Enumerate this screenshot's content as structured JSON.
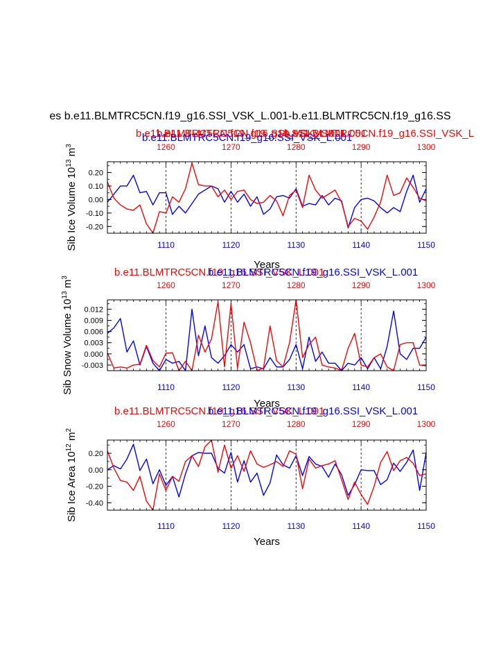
{
  "page": {
    "main_title": "es b.e11.BLMTRC5CN.f19_g16.SSI_VSK_L.001-b.e11.BLMTRC5CN.f19_g16.SS"
  },
  "colors": {
    "blue": "#0000ff",
    "red": "#ff0000",
    "black": "#000000"
  },
  "chart_data": [
    {
      "type": "line",
      "top_titles": [
        {
          "text": "b.e11.BLMTRC5CN.f19_g16.SSI_VSK_L.001",
          "color": "red"
        },
        {
          "text": "b.e11.BLMTRC5CN.f19_g16.SSI_VSK_L.001",
          "color": "red"
        },
        {
          "text": "b.e11.BLMTRC5CN.f19_g16.SSI_VSK_L.001",
          "color": "blue"
        },
        {
          "text": "b.e11.BLMTRC5CN.f19_g16.SSI_VSK_L",
          "color": "red"
        }
      ],
      "ylabel": "Sib Ice Volume 10",
      "ylabel_exp": "13",
      "ylabel_unit": " m",
      "ylabel_unit_exp": "3",
      "xlabel": "Years",
      "xlim": [
        1101,
        1150
      ],
      "ylim": [
        -0.25,
        0.28
      ],
      "yticks": [
        -0.2,
        -0.1,
        0.0,
        0.1,
        0.2
      ],
      "ytick_labels": [
        "-0.20",
        "-0.10",
        "0.00",
        "0.10",
        "0.20"
      ],
      "bottom_ticks": [
        1110,
        1120,
        1130,
        1140,
        1150
      ],
      "top_ticks": [
        1260,
        1270,
        1280,
        1290,
        1300
      ],
      "dashed_verticals": [
        1110,
        1120,
        1130,
        1140
      ],
      "series": [
        {
          "color": "blue",
          "values": [
            -0.02,
            0.04,
            0.1,
            0.1,
            0.18,
            0.05,
            0.06,
            -0.04,
            0.05,
            0.05,
            -0.11,
            -0.05,
            -0.1,
            -0.03,
            0.04,
            0.07,
            0.1,
            0.08,
            -0.02,
            0.06,
            -0.02,
            0.04,
            -0.05,
            0.02,
            -0.11,
            -0.07,
            0.02,
            0.03,
            0.01,
            0.08,
            -0.05,
            -0.03,
            -0.04,
            0.03,
            -0.04,
            0.01,
            -0.01,
            -0.21,
            -0.06,
            0.0,
            0.01,
            -0.01,
            -0.06,
            -0.1,
            -0.06,
            -0.09,
            0.06,
            0.18,
            -0.02,
            0.08
          ]
        },
        {
          "color": "red",
          "values": [
            0.13,
            0.01,
            -0.04,
            -0.07,
            -0.08,
            -0.04,
            -0.18,
            -0.25,
            -0.09,
            -0.1,
            0.02,
            -0.02,
            0.08,
            0.27,
            0.11,
            0.1,
            0.1,
            0.02,
            0.07,
            0.0,
            0.06,
            0.07,
            0.0,
            -0.03,
            -0.02,
            0.03,
            -0.01,
            -0.12,
            0.03,
            0.07,
            -0.06,
            0.18,
            0.07,
            0.01,
            0.04,
            0.07,
            -0.02,
            -0.2,
            -0.14,
            -0.16,
            -0.22,
            -0.13,
            -0.02,
            0.18,
            0.03,
            0.05,
            0.16,
            0.09,
            0.01,
            -0.01
          ]
        }
      ]
    },
    {
      "type": "line",
      "top_titles": [
        {
          "text": "b.e11.BLMTRC5CN.f19_g16.SSI_VSK_L.001",
          "color": "red"
        },
        {
          "text": "b.e11.BLMTRC5CN.f19_g16.SSI_VSK_L.001",
          "color": "blue"
        }
      ],
      "ylabel": "Sib Snow Volume 10",
      "ylabel_exp": "13",
      "ylabel_unit": " m",
      "ylabel_unit_exp": "3",
      "xlabel": "Years",
      "xlim": [
        1101,
        1150
      ],
      "ylim": [
        -0.0045,
        0.0145
      ],
      "yticks": [
        -0.003,
        0.0,
        0.003,
        0.006,
        0.009,
        0.012
      ],
      "ytick_labels": [
        "-0.003",
        "0.000",
        "0.003",
        "0.006",
        "0.009",
        "0.012"
      ],
      "bottom_ticks": [
        1110,
        1120,
        1130,
        1140,
        1150
      ],
      "top_ticks": [
        1260,
        1270,
        1280,
        1290,
        1300
      ],
      "dashed_verticals": [
        1110,
        1120,
        1130,
        1140
      ],
      "series": [
        {
          "color": "blue",
          "values": [
            0.0055,
            0.007,
            0.0095,
            0.0005,
            0.0035,
            -0.003,
            0.002,
            -0.0025,
            -0.0045,
            -0.0015,
            -0.0025,
            -0.002,
            -0.0045,
            0.012,
            -0.0005,
            0.0075,
            -0.001,
            -0.0025,
            -0.0005,
            0.0025,
            0.0005,
            0.0025,
            -0.004,
            -0.0035,
            -0.004,
            -0.001,
            -0.0035,
            -0.0035,
            -0.0015,
            0.0025,
            -0.004,
            0.0045,
            -0.002,
            0.0005,
            -0.0025,
            -0.0025,
            -0.0045,
            -0.0025,
            -0.003,
            -0.001,
            -0.004,
            -0.001,
            -0.004,
            0.002,
            0.0115,
            0.0,
            -0.0015,
            0.0015,
            0.0015,
            0.0045
          ]
        },
        {
          "color": "red",
          "values": [
            0.0002,
            -0.0038,
            -0.0035,
            -0.0038,
            -0.003,
            -0.0028,
            0.0023,
            -0.0018,
            -0.0035,
            0.0002,
            0.0003,
            -0.0045,
            -0.002,
            -0.0045,
            0.005,
            0.0005,
            0.004,
            0.014,
            -0.0035,
            0.0135,
            -0.0038,
            0.0085,
            0.003,
            -0.0045,
            -0.0038,
            0.0075,
            -0.0018,
            -0.0035,
            0.003,
            0.0145,
            -0.001,
            0.0025,
            0.0045,
            -0.003,
            -0.0035,
            -0.0038,
            -0.0045,
            0.0015,
            0.0055,
            -0.003,
            -0.0035,
            -0.001,
            0.0,
            -0.0035,
            -0.0045,
            0.0025,
            0.003,
            0.003,
            -0.003,
            -0.0032
          ]
        }
      ]
    },
    {
      "type": "line",
      "top_titles": [
        {
          "text": "b.e11.BLMTRC5CN.f19_g16.SSI_VSK_L.001",
          "color": "red"
        },
        {
          "text": "b.e11.BLMTRC5CN.f19_g16.SSI_VSK_L.001",
          "color": "blue"
        }
      ],
      "ylabel": "Sib Ice Area 10",
      "ylabel_exp": "12",
      "ylabel_unit": " m",
      "ylabel_unit_exp": "2",
      "xlabel": "Years",
      "xlim": [
        1101,
        1150
      ],
      "ylim": [
        -0.49,
        0.36
      ],
      "yticks": [
        -0.4,
        -0.2,
        0.0,
        0.2
      ],
      "ytick_labels": [
        "-0.40",
        "-0.20",
        "0.00",
        "0.20"
      ],
      "bottom_ticks": [
        1110,
        1120,
        1130,
        1140,
        1150
      ],
      "top_ticks": [
        1260,
        1270,
        1280,
        1290,
        1300
      ],
      "dashed_verticals": [
        1110,
        1120,
        1130,
        1140
      ],
      "series": [
        {
          "color": "blue",
          "values": [
            0.0,
            0.05,
            0.01,
            0.13,
            0.31,
            -0.01,
            0.13,
            -0.17,
            0.0,
            -0.19,
            -0.08,
            -0.33,
            -0.05,
            0.17,
            0.21,
            0.2,
            0.2,
            0.02,
            -0.04,
            0.21,
            -0.15,
            0.11,
            -0.15,
            -0.04,
            -0.31,
            -0.16,
            0.18,
            0.06,
            0.02,
            0.17,
            -0.07,
            0.16,
            0.07,
            0.04,
            -0.09,
            0.07,
            -0.06,
            -0.31,
            -0.18,
            0.0,
            -0.01,
            -0.01,
            -0.18,
            -0.12,
            0.08,
            -0.02,
            0.09,
            0.24,
            -0.25,
            0.21
          ]
        },
        {
          "color": "red",
          "values": [
            0.23,
            0.02,
            -0.13,
            -0.15,
            -0.25,
            -0.08,
            -0.38,
            -0.49,
            -0.05,
            -0.25,
            -0.08,
            -0.14,
            0.1,
            0.17,
            0.04,
            0.28,
            0.36,
            -0.03,
            0.3,
            0.02,
            0.17,
            -0.02,
            0.23,
            0.07,
            0.03,
            0.06,
            0.1,
            0.04,
            0.23,
            0.19,
            -0.23,
            0.13,
            0.02,
            0.05,
            0.07,
            0.11,
            -0.12,
            -0.36,
            -0.15,
            -0.3,
            -0.42,
            -0.2,
            0.09,
            0.22,
            -0.01,
            0.11,
            0.15,
            0.08,
            -0.07,
            -0.05
          ]
        }
      ]
    }
  ]
}
